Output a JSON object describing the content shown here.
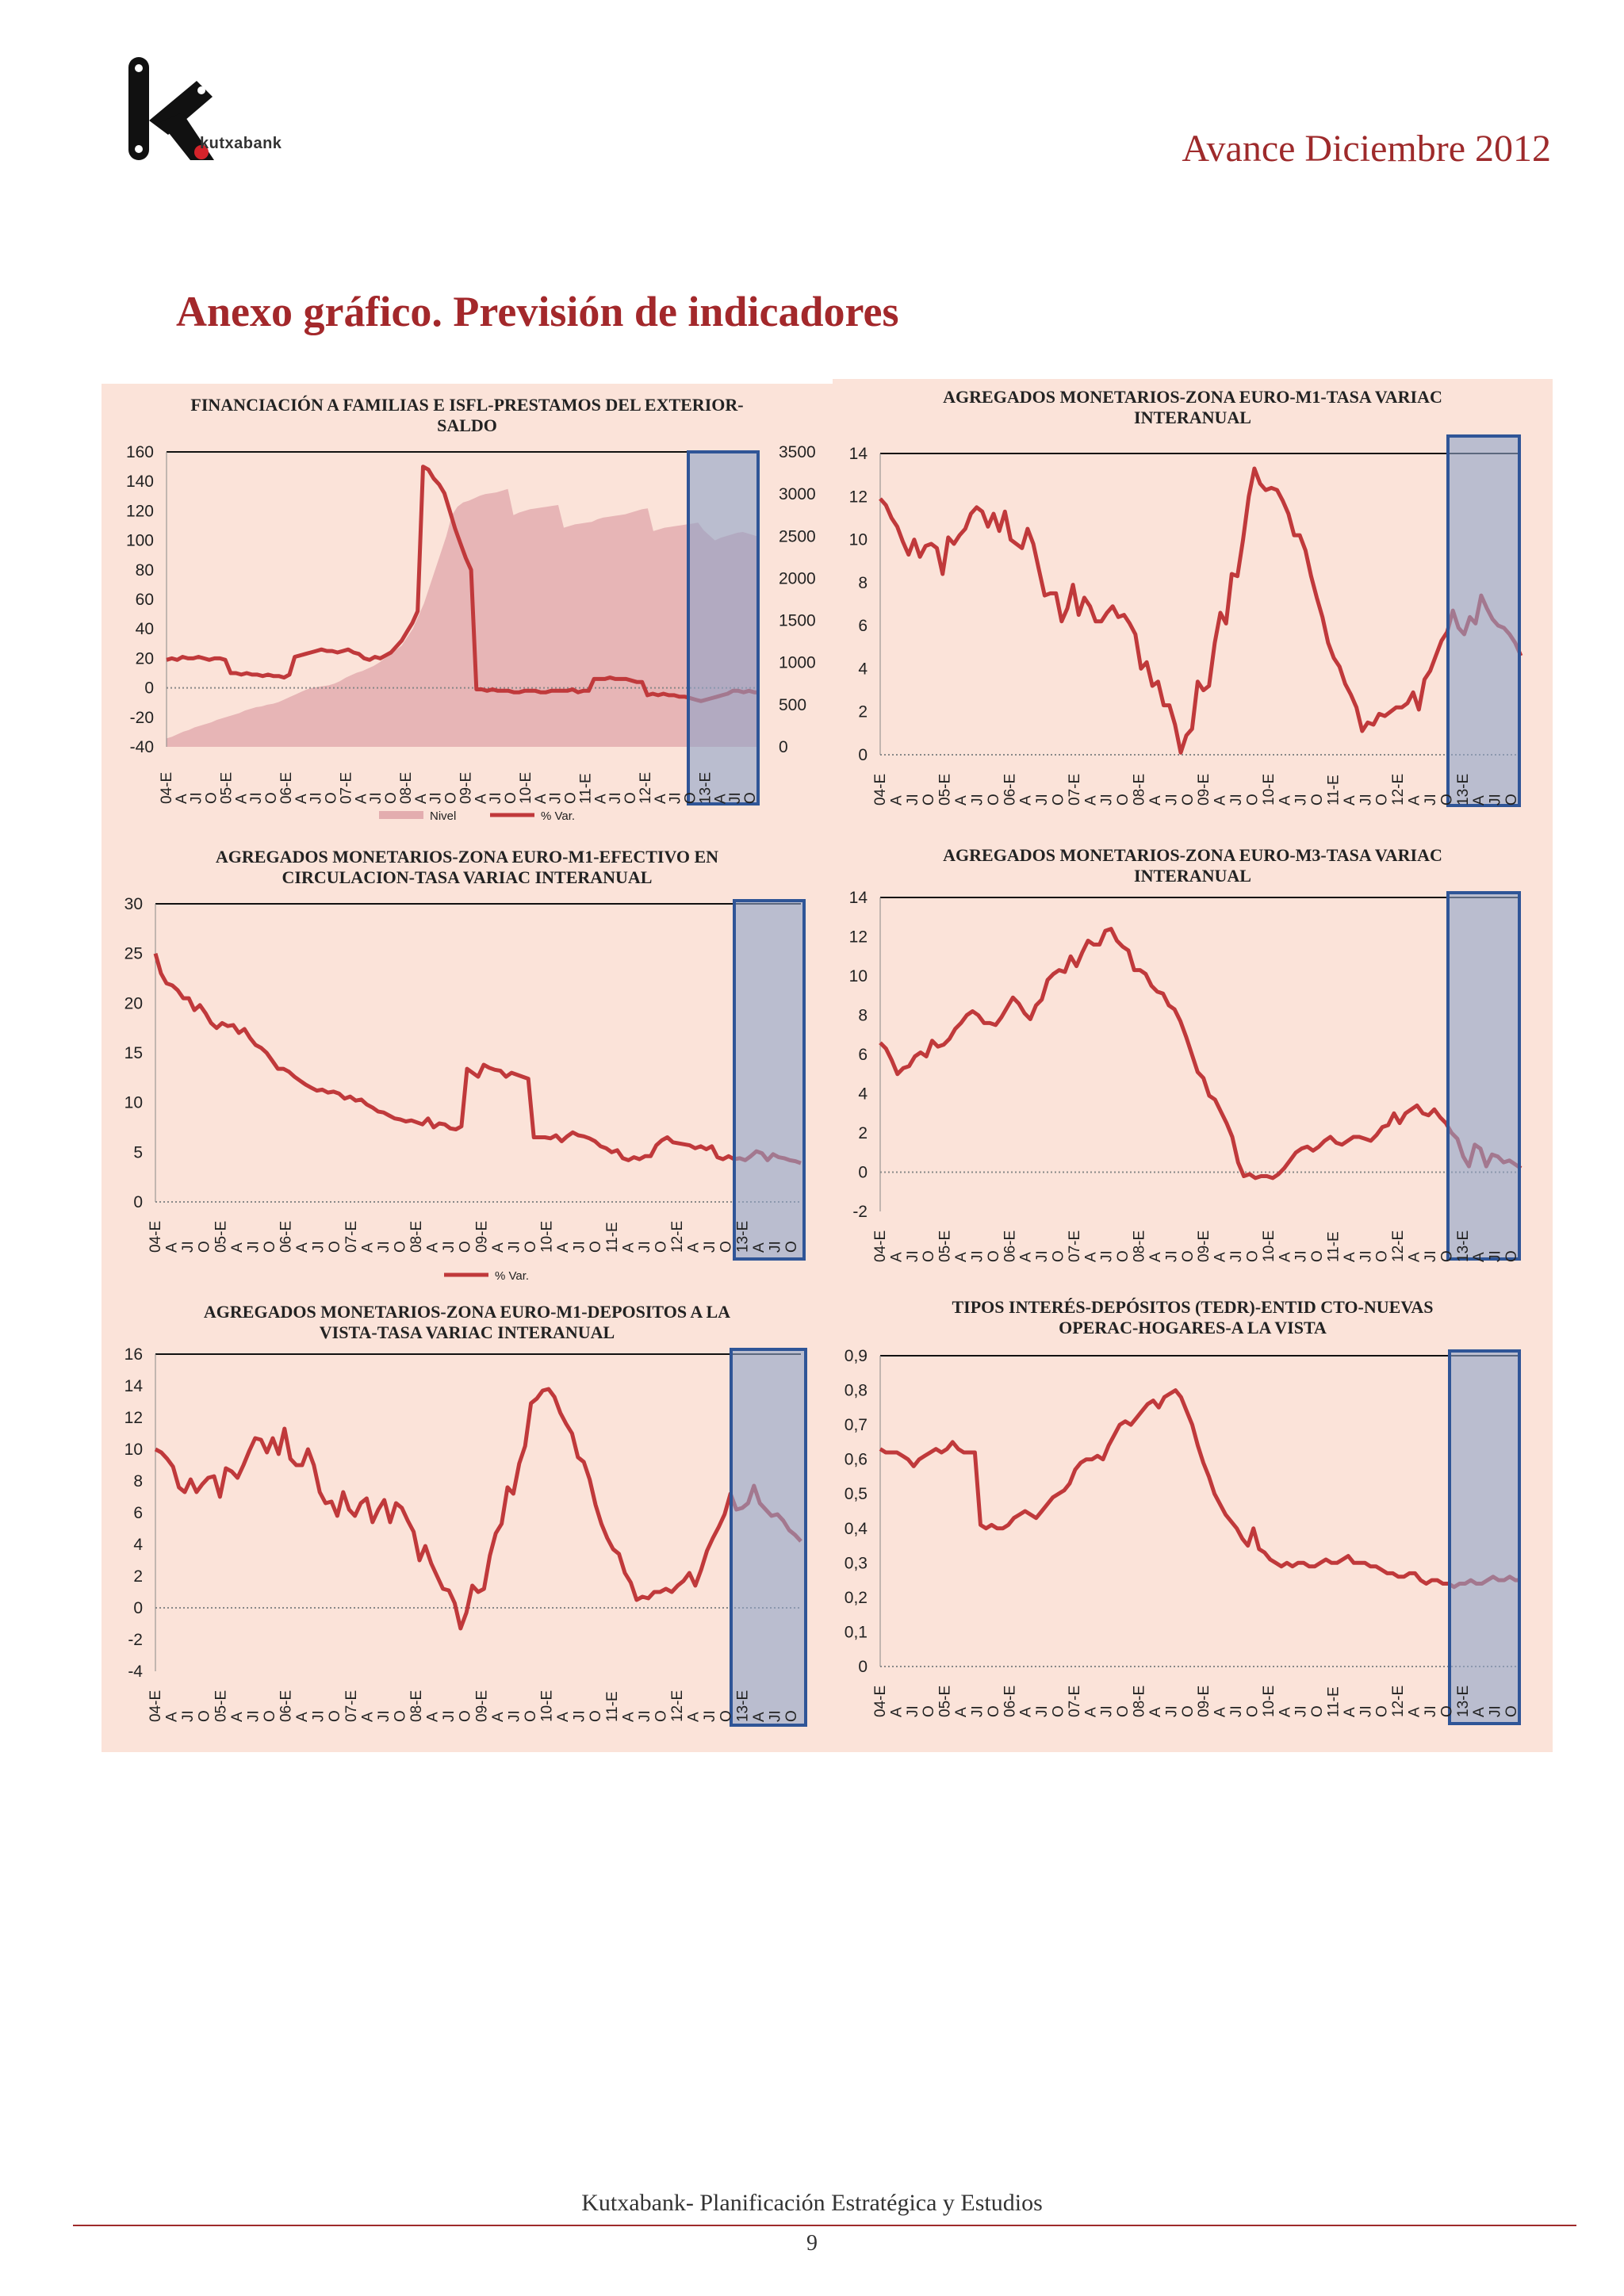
{
  "header": {
    "brand": "kutxabank",
    "edition": "Avance Diciembre 2012"
  },
  "page_title": "Anexo gráfico. Previsión de indicadores",
  "footer": {
    "text": "Kutxabank- Planificación Estratégica y Estudios",
    "page": "9"
  },
  "colors": {
    "accent": "#9e2a2b",
    "line": "#c0393b",
    "area": "#e3adaf",
    "panel_bg": "#fbe3d9",
    "forecast_box": "#2f5597",
    "forecast_fill": "#8fa4c8"
  },
  "x_ticks": [
    "04-E",
    "A",
    "JI",
    "O",
    "05-E",
    "A",
    "JI",
    "O",
    "06-E",
    "A",
    "JI",
    "O",
    "07-E",
    "A",
    "JI",
    "O",
    "08-E",
    "A",
    "JI",
    "O",
    "09-E",
    "A",
    "JI",
    "O",
    "10-E",
    "A",
    "JI",
    "O",
    "11-E",
    "A",
    "JI",
    "O",
    "12-E",
    "A",
    "JI",
    "O",
    "13-E",
    "A",
    "JI",
    "O"
  ],
  "chart_data": [
    {
      "type": "line",
      "title": "FINANCIACIÓN A FAMILIAS E ISFL-PRESTAMOS DEL EXTERIOR-SALDO",
      "ylim": [
        -40,
        160
      ],
      "yticks": [
        "160",
        "140",
        "120",
        "100",
        "80",
        "60",
        "40",
        "20",
        "0",
        "-20",
        "-40"
      ],
      "y2lim": [
        0,
        3500
      ],
      "y2ticks": [
        "3500",
        "3000",
        "2500",
        "2000",
        "1500",
        "1000",
        "500",
        "0"
      ],
      "legend": [
        "Nivel",
        "% Var."
      ],
      "forecast": "13-E to 13-O",
      "series": [
        {
          "name": "Nivel",
          "axis": "right",
          "kind": "area",
          "values": [
            100,
            120,
            150,
            180,
            200,
            230,
            250,
            270,
            290,
            320,
            340,
            360,
            380,
            400,
            430,
            450,
            470,
            480,
            500,
            510,
            530,
            560,
            590,
            620,
            650,
            680,
            700,
            710,
            720,
            730,
            750,
            780,
            820,
            850,
            880,
            900,
            930,
            960,
            1000,
            1050,
            1100,
            1150,
            1200,
            1300,
            1400,
            1550,
            1700,
            1900,
            2100,
            2300,
            2500,
            2750,
            2850,
            2900,
            2920,
            2950,
            2980,
            3000,
            3010,
            3020,
            3040,
            3060,
            2750,
            2780,
            2800,
            2820,
            2830,
            2840,
            2850,
            2860,
            2870,
            2600,
            2620,
            2640,
            2650,
            2660,
            2670,
            2700,
            2720,
            2730,
            2740,
            2750,
            2760,
            2780,
            2800,
            2820,
            2830,
            2560,
            2580,
            2600,
            2610,
            2620,
            2630,
            2640,
            2650,
            2660,
            2570,
            2510,
            2450,
            2480,
            2500,
            2520,
            2540,
            2550,
            2530,
            2510,
            2490
          ]
        },
        {
          "name": "% Var.",
          "axis": "left",
          "kind": "line",
          "values": [
            19,
            20,
            19,
            21,
            20,
            20,
            21,
            20,
            19,
            20,
            20,
            19,
            10,
            10,
            9,
            10,
            9,
            9,
            8,
            9,
            8,
            8,
            7,
            9,
            21,
            22,
            23,
            24,
            25,
            26,
            25,
            25,
            24,
            25,
            26,
            24,
            23,
            20,
            19,
            21,
            20,
            22,
            24,
            28,
            32,
            38,
            44,
            52,
            150,
            148,
            142,
            138,
            132,
            120,
            108,
            98,
            88,
            80,
            -1,
            -1,
            -2,
            -1,
            -2,
            -2,
            -2,
            -3,
            -3,
            -2,
            -2,
            -2,
            -3,
            -3,
            -2,
            -2,
            -2,
            -2,
            -1,
            -3,
            -2,
            -2,
            6,
            6,
            6,
            7,
            6,
            6,
            6,
            5,
            4,
            4,
            -5,
            -4,
            -5,
            -4,
            -5,
            -5,
            -6,
            -6,
            -7,
            -8,
            -9,
            -8,
            -7,
            -6,
            -5,
            -4,
            -2,
            -2,
            -3,
            -2,
            -3,
            -3
          ]
        }
      ]
    },
    {
      "type": "line",
      "title": "AGREGADOS MONETARIOS-ZONA EURO-M1-TASA VARIAC INTERANUAL",
      "ylim": [
        0,
        14
      ],
      "yticks": [
        "14",
        "12",
        "10",
        "8",
        "6",
        "4",
        "2",
        "0"
      ],
      "forecast": "13-E to 13-O",
      "series": [
        {
          "name": "",
          "values": [
            11.9,
            11.6,
            11,
            10.6,
            9.9,
            9.3,
            10,
            9.2,
            9.7,
            9.8,
            9.6,
            8.4,
            10.1,
            9.8,
            10.2,
            10.5,
            11.2,
            11.5,
            11.3,
            10.6,
            11.2,
            10.4,
            11.3,
            10,
            9.8,
            9.6,
            10.5,
            9.8,
            8.6,
            7.4,
            7.5,
            7.5,
            6.2,
            6.8,
            7.9,
            6.5,
            7.3,
            6.9,
            6.2,
            6.2,
            6.6,
            6.9,
            6.4,
            6.5,
            6.1,
            5.6,
            4,
            4.3,
            3.2,
            3.4,
            2.3,
            2.3,
            1.4,
            0.1,
            0.9,
            1.2,
            3.4,
            3,
            3.2,
            5.2,
            6.6,
            6.1,
            8.4,
            8.3,
            10,
            12,
            13.3,
            12.6,
            12.3,
            12.4,
            12.3,
            11.8,
            11.2,
            10.2,
            10.2,
            9.5,
            8.3,
            7.3,
            6.4,
            5.2,
            4.5,
            4.1,
            3.3,
            2.8,
            2.2,
            1.1,
            1.5,
            1.4,
            1.9,
            1.8,
            2,
            2.2,
            2.2,
            2.4,
            2.9,
            2.1,
            3.5,
            3.9,
            4.6,
            5.3,
            5.7,
            6.7,
            5.9,
            5.6,
            6.4,
            6.1,
            7.4,
            6.8,
            6.3,
            6,
            5.9,
            5.6,
            5.2,
            4.6
          ]
        }
      ]
    },
    {
      "type": "line",
      "title": "AGREGADOS MONETARIOS-ZONA EURO-M1-EFECTIVO EN CIRCULACION-TASA VARIAC INTERANUAL",
      "ylim": [
        0,
        30
      ],
      "yticks": [
        "30",
        "25",
        "20",
        "15",
        "10",
        "5",
        "0"
      ],
      "legend": [
        "% Var."
      ],
      "forecast": "13-E to 13-O",
      "series": [
        {
          "name": "% Var.",
          "values": [
            25,
            23,
            22,
            21.8,
            21.3,
            20.5,
            20.5,
            19.3,
            19.8,
            19,
            18,
            17.5,
            18,
            17.7,
            17.8,
            17,
            17.4,
            16.5,
            15.8,
            15.5,
            15,
            14.2,
            13.4,
            13.4,
            13.1,
            12.6,
            12.2,
            11.8,
            11.5,
            11.2,
            11.3,
            11,
            11.1,
            10.9,
            10.4,
            10.6,
            10.2,
            10.3,
            9.8,
            9.5,
            9.1,
            9,
            8.7,
            8.4,
            8.3,
            8.1,
            8.2,
            8,
            7.8,
            8.4,
            7.5,
            7.9,
            7.8,
            7.4,
            7.3,
            7.6,
            13.4,
            13,
            12.6,
            13.8,
            13.5,
            13.3,
            13.2,
            12.6,
            13,
            12.8,
            12.6,
            12.4,
            6.5,
            6.5,
            6.5,
            6.4,
            6.7,
            6.1,
            6.6,
            7,
            6.7,
            6.6,
            6.4,
            6.1,
            5.6,
            5.4,
            5,
            5.2,
            4.4,
            4.2,
            4.5,
            4.3,
            4.6,
            4.6,
            5.7,
            6.2,
            6.5,
            6,
            5.9,
            5.8,
            5.7,
            5.4,
            5.6,
            5.3,
            5.6,
            4.5,
            4.3,
            4.6,
            4.3,
            4.4,
            4.2,
            4.6,
            5.1,
            4.9,
            4.2,
            4.8,
            4.5,
            4.4,
            4.2,
            4.1,
            3.9
          ]
        }
      ]
    },
    {
      "type": "line",
      "title": "AGREGADOS MONETARIOS-ZONA EURO-M3-TASA VARIAC INTERANUAL",
      "ylim": [
        -2,
        14
      ],
      "yticks": [
        "14",
        "12",
        "10",
        "8",
        "6",
        "4",
        "2",
        "0",
        "-2"
      ],
      "forecast": "13-E to 13-O",
      "series": [
        {
          "name": "",
          "values": [
            6.6,
            6.3,
            5.7,
            5,
            5.3,
            5.4,
            5.9,
            6.1,
            5.9,
            6.7,
            6.4,
            6.5,
            6.8,
            7.3,
            7.6,
            8,
            8.2,
            8,
            7.6,
            7.6,
            7.5,
            7.9,
            8.4,
            8.9,
            8.6,
            8.1,
            7.8,
            8.5,
            8.8,
            9.8,
            10.1,
            10.3,
            10.2,
            11,
            10.5,
            11.2,
            11.8,
            11.6,
            11.6,
            12.3,
            12.4,
            11.8,
            11.5,
            11.3,
            10.3,
            10.3,
            10.1,
            9.5,
            9.2,
            9.1,
            8.5,
            8.3,
            7.7,
            6.9,
            6,
            5.1,
            4.8,
            3.9,
            3.7,
            3.1,
            2.5,
            1.8,
            0.5,
            -0.2,
            -0.1,
            -0.3,
            -0.2,
            -0.2,
            -0.3,
            -0.1,
            0.2,
            0.6,
            1,
            1.2,
            1.3,
            1.1,
            1.3,
            1.6,
            1.8,
            1.5,
            1.4,
            1.6,
            1.8,
            1.8,
            1.7,
            1.6,
            1.9,
            2.3,
            2.4,
            3,
            2.5,
            3,
            3.2,
            3.4,
            3,
            2.9,
            3.2,
            2.8,
            2.5,
            2,
            1.7,
            0.8,
            0.3,
            1.4,
            1.2,
            0.3,
            0.9,
            0.8,
            0.5,
            0.6,
            0.4,
            0.2
          ]
        }
      ]
    },
    {
      "type": "line",
      "title": "AGREGADOS MONETARIOS-ZONA EURO-M1-DEPOSITOS A LA VISTA-TASA VARIAC INTERANUAL",
      "ylim": [
        -4,
        16
      ],
      "yticks": [
        "16",
        "14",
        "12",
        "10",
        "8",
        "6",
        "4",
        "2",
        "0",
        "-2",
        "-4"
      ],
      "forecast": "13-E to 13-O",
      "series": [
        {
          "name": "",
          "values": [
            10,
            9.8,
            9.4,
            8.9,
            7.6,
            7.3,
            8.1,
            7.3,
            7.8,
            8.2,
            8.3,
            7,
            8.8,
            8.6,
            8.2,
            9,
            9.9,
            10.7,
            10.6,
            9.8,
            10.7,
            9.7,
            11.3,
            9.4,
            9,
            9,
            10,
            9,
            7.3,
            6.6,
            6.7,
            5.8,
            7.3,
            6.2,
            5.8,
            6.6,
            6.9,
            5.4,
            6.2,
            6.8,
            5.4,
            6.6,
            6.3,
            5.5,
            4.8,
            3,
            3.9,
            2.8,
            2,
            1.2,
            1.1,
            0.3,
            -1.3,
            -0.3,
            1.4,
            1,
            1.2,
            3.3,
            4.7,
            5.3,
            7.6,
            7.2,
            9.1,
            10.2,
            12.9,
            13.2,
            13.7,
            13.8,
            13.3,
            12.3,
            11.6,
            11,
            9.5,
            9.2,
            8.1,
            6.5,
            5.3,
            4.4,
            3.7,
            3.4,
            2.2,
            1.6,
            0.5,
            0.7,
            0.6,
            1,
            1,
            1.2,
            1,
            1.4,
            1.7,
            2.2,
            1.4,
            2.4,
            3.6,
            4.4,
            5.1,
            5.9,
            7.2,
            6.2,
            6.3,
            6.6,
            7.7,
            6.6,
            6.2,
            5.8,
            5.9,
            5.5,
            4.9,
            4.6,
            4.2
          ]
        }
      ]
    },
    {
      "type": "line",
      "title": "TIPOS INTERÉS-DEPÓSITOS (TEDR)-ENTID CTO-NUEVAS OPERAC-HOGARES-A LA VISTA",
      "ylim": [
        0,
        0.9
      ],
      "yticks": [
        "0,9",
        "0,8",
        "0,7",
        "0,6",
        "0,5",
        "0,4",
        "0,3",
        "0,2",
        "0,1",
        "0"
      ],
      "forecast": "13-E to 13-O",
      "series": [
        {
          "name": "",
          "values": [
            0.63,
            0.62,
            0.62,
            0.62,
            0.61,
            0.6,
            0.58,
            0.6,
            0.61,
            0.62,
            0.63,
            0.62,
            0.63,
            0.65,
            0.63,
            0.62,
            0.62,
            0.62,
            0.41,
            0.4,
            0.41,
            0.4,
            0.4,
            0.41,
            0.43,
            0.44,
            0.45,
            0.44,
            0.43,
            0.45,
            0.47,
            0.49,
            0.5,
            0.51,
            0.53,
            0.57,
            0.59,
            0.6,
            0.6,
            0.61,
            0.6,
            0.64,
            0.67,
            0.7,
            0.71,
            0.7,
            0.72,
            0.74,
            0.76,
            0.77,
            0.75,
            0.78,
            0.79,
            0.8,
            0.78,
            0.74,
            0.7,
            0.64,
            0.59,
            0.55,
            0.5,
            0.47,
            0.44,
            0.42,
            0.4,
            0.37,
            0.35,
            0.4,
            0.34,
            0.33,
            0.31,
            0.3,
            0.29,
            0.3,
            0.29,
            0.3,
            0.3,
            0.29,
            0.29,
            0.3,
            0.31,
            0.3,
            0.3,
            0.31,
            0.32,
            0.3,
            0.3,
            0.3,
            0.29,
            0.29,
            0.28,
            0.27,
            0.27,
            0.26,
            0.26,
            0.27,
            0.27,
            0.25,
            0.24,
            0.25,
            0.25,
            0.24,
            0.24,
            0.23,
            0.24,
            0.24,
            0.25,
            0.24,
            0.24,
            0.25,
            0.26,
            0.25,
            0.25,
            0.26,
            0.25,
            0.25
          ]
        }
      ]
    }
  ]
}
